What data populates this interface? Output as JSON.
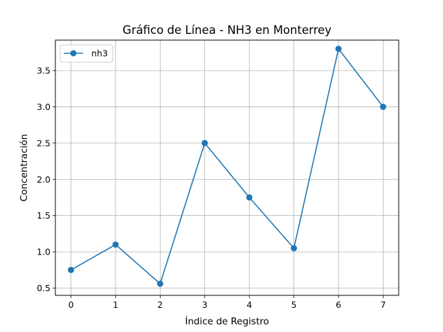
{
  "chart_data": {
    "type": "line",
    "title": "Gráfico de Línea - NH3 en Monterrey",
    "xlabel": "Índice de Registro",
    "ylabel": "Concentración",
    "x": [
      0,
      1,
      2,
      3,
      4,
      5,
      6,
      7
    ],
    "series": [
      {
        "name": "nh3",
        "values": [
          0.75,
          1.1,
          0.56,
          2.5,
          1.75,
          1.05,
          3.8,
          3.0
        ]
      }
    ],
    "xlim": [
      -0.35,
      7.35
    ],
    "ylim": [
      0.4,
      3.92
    ],
    "xticks": [
      0,
      1,
      2,
      3,
      4,
      5,
      6,
      7
    ],
    "yticks": [
      0.5,
      1.0,
      1.5,
      2.0,
      2.5,
      3.0,
      3.5
    ],
    "ytick_labels": [
      "0.5",
      "1.0",
      "1.5",
      "2.0",
      "2.5",
      "3.0",
      "3.5"
    ],
    "grid": true,
    "legend_position": "upper-left",
    "colors": {
      "series": "#1f77b4",
      "grid": "#b0b0b0",
      "axes": "#000000"
    }
  }
}
